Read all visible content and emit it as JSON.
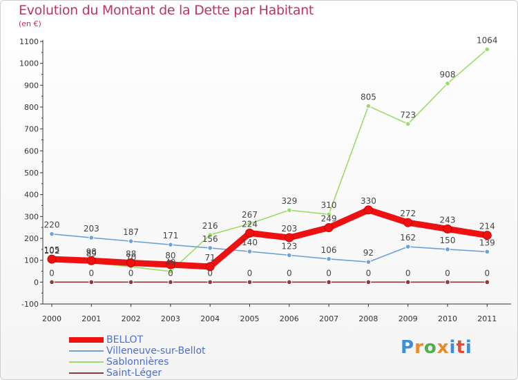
{
  "title": "Evolution du Montant de la Dette par Habitant",
  "subtitle": "(en €)",
  "logo": {
    "text": "Proxiti",
    "letter_colors": [
      "#3a8fd8",
      "#e8892a",
      "#4caf50",
      "#e8892a",
      "#3a8fd8",
      "#e84a3a",
      "#3a8fd8"
    ]
  },
  "chart_data": {
    "type": "line",
    "x": [
      "2000",
      "2001",
      "2002",
      "2003",
      "2004",
      "2005",
      "2006",
      "2007",
      "2008",
      "2009",
      "2010",
      "2011"
    ],
    "ylim": [
      -100,
      1100
    ],
    "yticks": [
      "-100",
      "0",
      "100",
      "200",
      "300",
      "400",
      "500",
      "600",
      "700",
      "800",
      "900",
      "1000",
      "1100"
    ],
    "grid": false,
    "legend_position": "bottom-left",
    "series": [
      {
        "name": "BELLOT",
        "color": "#ee1111",
        "values": [
          105,
          98,
          88,
          80,
          71,
          224,
          203,
          249,
          330,
          272,
          243,
          214
        ],
        "labels": [
          "105",
          "98",
          "88",
          "80",
          "71",
          "224",
          "203",
          "249",
          "330",
          "272",
          "243",
          "214"
        ]
      },
      {
        "name": "Villeneuve-sur-Bellot",
        "color": "#6ea0d8",
        "values": [
          220,
          203,
          187,
          171,
          156,
          140,
          123,
          106,
          92,
          162,
          150,
          139
        ],
        "labels": [
          "220",
          "203",
          "187",
          "171",
          "156",
          "140",
          "123",
          "106",
          "92",
          "162",
          "150",
          "139"
        ]
      },
      {
        "name": "Sablonnières",
        "color": "#99dd66",
        "values": [
          102,
          89,
          70,
          49,
          216,
          267,
          329,
          310,
          805,
          723,
          908,
          1064
        ],
        "labels": [
          "102",
          "89",
          "70",
          "49",
          "216",
          "267",
          "329",
          "310",
          "805",
          "723",
          "908",
          "1064"
        ]
      },
      {
        "name": "Saint-Léger",
        "color": "#8b3a3a",
        "values": [
          0,
          0,
          0,
          0,
          0,
          0,
          0,
          0,
          0,
          0,
          0,
          0
        ],
        "labels": [
          "0",
          "0",
          "0",
          "0",
          "0",
          "0",
          "0",
          "0",
          "0",
          "0",
          "0",
          "0"
        ]
      }
    ]
  }
}
